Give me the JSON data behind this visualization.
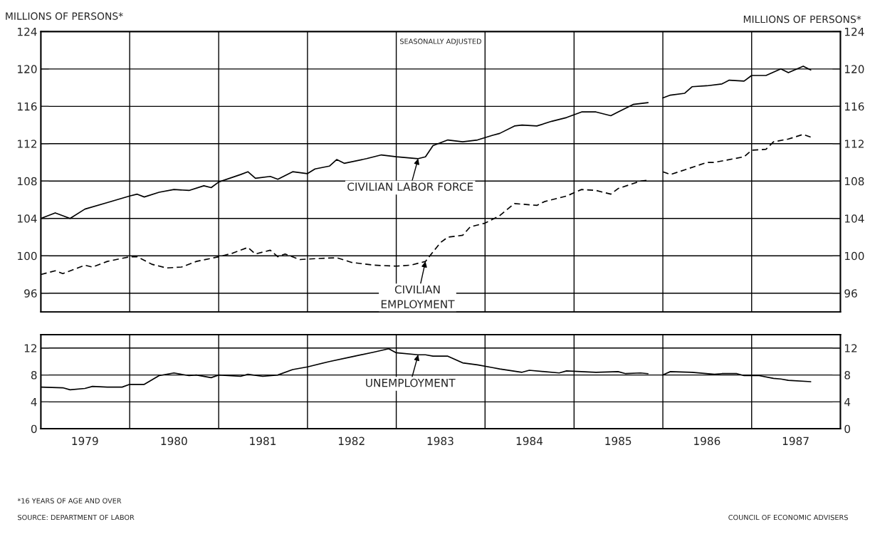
{
  "chart_data": [
    {
      "type": "line",
      "subtitle": "SEASONALLY ADJUSTED",
      "ylabel": "MILLIONS OF PERSONS*",
      "y2label": "MILLIONS OF PERSONS*",
      "xlim": [
        "1979-01",
        "1988-01"
      ],
      "xticks": [
        {
          "value": "1980-01",
          "label": null
        },
        {
          "value": "1981-01",
          "label": null
        },
        {
          "value": "1982-01",
          "label": null
        },
        {
          "value": "1983-01",
          "label": null
        },
        {
          "value": "1984-01",
          "label": null
        },
        {
          "value": "1985-01",
          "label": null
        },
        {
          "value": "1986-01",
          "label": null
        },
        {
          "value": "1987-01",
          "label": null
        }
      ],
      "ylim": [
        94,
        124
      ],
      "yticks": [
        96,
        100,
        104,
        108,
        112,
        116,
        120,
        124
      ],
      "y2lim": [
        94,
        124
      ],
      "y2ticks": [
        96,
        100,
        104,
        108,
        112,
        116,
        120,
        124
      ],
      "tick_labels": "y",
      "grid": true,
      "legend": false,
      "series": [
        {
          "color": "#000000",
          "line_style": "solid",
          "x": [
            "1979-01",
            "1979-03",
            "1979-05",
            "1979-07",
            "1979-10",
            "1980-01",
            "1980-02",
            "1980-03",
            "1980-05",
            "1980-07",
            "1980-09",
            "1980-11",
            "1980-12",
            "1981-01",
            "1981-04",
            "1981-05",
            "1981-06",
            "1981-08",
            "1981-09",
            "1981-11",
            "1982-01",
            "1982-02",
            "1982-04",
            "1982-05",
            "1982-06",
            "1982-09",
            "1982-11",
            "1983-01",
            "1983-04",
            "1983-05",
            "1983-06",
            "1983-08",
            "1983-10",
            "1983-12",
            "1984-02",
            "1984-03",
            "1984-05",
            "1984-06",
            "1984-08",
            "1984-10",
            "1984-12",
            "1985-02",
            "1985-04",
            "1985-06",
            "1985-07",
            "1985-09",
            "1985-11",
            "1985-12",
            "1986-01",
            "1986-02",
            "1986-04",
            "1986-05",
            "1986-07",
            "1986-09",
            "1986-10",
            "1986-12",
            "1987-01",
            "1987-03",
            "1987-05",
            "1987-06",
            "1987-08",
            "1987-09"
          ],
          "values": [
            104.0,
            104.6,
            104.0,
            105.0,
            105.7,
            106.4,
            106.6,
            106.3,
            106.8,
            107.1,
            107.0,
            107.5,
            107.3,
            107.9,
            108.7,
            109.0,
            108.3,
            108.5,
            108.2,
            109.0,
            108.8,
            109.3,
            109.6,
            110.3,
            109.9,
            110.4,
            110.8,
            110.6,
            110.4,
            110.6,
            111.8,
            112.4,
            112.2,
            112.4,
            112.9,
            113.1,
            113.9,
            114.0,
            113.9,
            114.4,
            114.8,
            115.4,
            115.4,
            115.0,
            115.4,
            116.2,
            116.4,
            null,
            116.9,
            117.2,
            117.4,
            118.1,
            118.2,
            118.4,
            118.8,
            118.7,
            119.3,
            119.3,
            120.0,
            119.6,
            120.3,
            119.9
          ]
        },
        {
          "color": "#000000",
          "line_style": "dashed",
          "x": [
            "1979-01",
            "1979-03",
            "1979-04",
            "1979-07",
            "1979-08",
            "1979-10",
            "1980-01",
            "1980-02",
            "1980-04",
            "1980-06",
            "1980-08",
            "1980-10",
            "1981-01",
            "1981-03",
            "1981-05",
            "1981-06",
            "1981-08",
            "1981-09",
            "1981-10",
            "1981-12",
            "1982-02",
            "1982-05",
            "1982-07",
            "1982-10",
            "1983-01",
            "1983-03",
            "1983-05",
            "1983-07",
            "1983-08",
            "1983-10",
            "1983-11",
            "1984-01",
            "1984-03",
            "1984-05",
            "1984-08",
            "1984-09",
            "1984-12",
            "1985-02",
            "1985-04",
            "1985-06",
            "1985-07",
            "1985-10",
            "1985-11",
            "1985-12",
            "1986-01",
            "1986-02",
            "1986-04",
            "1986-07",
            "1986-08",
            "1986-12",
            "1987-01",
            "1987-03",
            "1987-04",
            "1987-06",
            "1987-08",
            "1987-09"
          ],
          "values": [
            98.0,
            98.4,
            98.1,
            99.0,
            98.8,
            99.4,
            99.9,
            99.9,
            99.1,
            98.7,
            98.8,
            99.4,
            99.9,
            100.3,
            100.9,
            100.2,
            100.6,
            99.9,
            100.2,
            99.6,
            99.7,
            99.8,
            99.3,
            99.0,
            98.9,
            99.0,
            99.4,
            101.4,
            102.0,
            102.2,
            103.1,
            103.5,
            104.3,
            105.6,
            105.4,
            105.8,
            106.4,
            107.1,
            107.0,
            106.6,
            107.2,
            108.0,
            108.1,
            null,
            109.0,
            108.7,
            109.2,
            110.0,
            110.0,
            110.6,
            111.3,
            111.4,
            112.2,
            112.5,
            113.0,
            112.7
          ]
        }
      ],
      "annotations": [
        {
          "text": "CIVILIAN LABOR FORCE",
          "x": "1983-04",
          "y": 110.4
        },
        {
          "text": "CIVILIAN\nEMPLOYMENT",
          "x": "1983-05",
          "y": 99.4
        }
      ]
    },
    {
      "type": "line",
      "xlim": [
        "1979-01",
        "1988-01"
      ],
      "xticks": [
        {
          "value": "1979-07",
          "label": "1979"
        },
        {
          "value": "1980-01",
          "label": null
        },
        {
          "value": "1980-07",
          "label": "1980"
        },
        {
          "value": "1981-01",
          "label": null
        },
        {
          "value": "1981-07",
          "label": "1981"
        },
        {
          "value": "1982-01",
          "label": null
        },
        {
          "value": "1982-07",
          "label": "1982"
        },
        {
          "value": "1983-01",
          "label": null
        },
        {
          "value": "1983-07",
          "label": "1983"
        },
        {
          "value": "1984-01",
          "label": null
        },
        {
          "value": "1984-07",
          "label": "1984"
        },
        {
          "value": "1985-01",
          "label": null
        },
        {
          "value": "1985-07",
          "label": "1985"
        },
        {
          "value": "1986-01",
          "label": null
        },
        {
          "value": "1986-07",
          "label": "1986"
        },
        {
          "value": "1987-01",
          "label": null
        },
        {
          "value": "1987-07",
          "label": "1987"
        }
      ],
      "ylim": [
        0,
        14
      ],
      "yticks": [
        0,
        4,
        8,
        12
      ],
      "y2lim": [
        0,
        14
      ],
      "y2ticks": [
        0,
        4,
        8,
        12
      ],
      "grid": true,
      "legend": false,
      "series": [
        {
          "color": "#000000",
          "line_style": "solid",
          "x": [
            "1979-01",
            "1979-04",
            "1979-05",
            "1979-07",
            "1979-08",
            "1979-10",
            "1979-12",
            "1980-01",
            "1980-03",
            "1980-05",
            "1980-07",
            "1980-09",
            "1980-10",
            "1980-12",
            "1981-01",
            "1981-04",
            "1981-05",
            "1981-07",
            "1981-09",
            "1981-11",
            "1982-01",
            "1982-04",
            "1982-07",
            "1982-10",
            "1982-12",
            "1983-01",
            "1983-04",
            "1983-05",
            "1983-06",
            "1983-08",
            "1983-10",
            "1983-12",
            "1984-02",
            "1984-03",
            "1984-06",
            "1984-07",
            "1984-11",
            "1984-12",
            "1985-04",
            "1985-07",
            "1985-08",
            "1985-10",
            "1985-11",
            "1985-12",
            "1986-01",
            "1986-02",
            "1986-05",
            "1986-08",
            "1986-09",
            "1986-11",
            "1986-12",
            "1987-02",
            "1987-04",
            "1987-05",
            "1987-06",
            "1987-09"
          ],
          "values": [
            6.2,
            6.1,
            5.8,
            6.0,
            6.3,
            6.2,
            6.2,
            6.6,
            6.6,
            7.9,
            8.3,
            7.9,
            8.0,
            7.6,
            8.0,
            7.8,
            8.1,
            7.8,
            8.0,
            8.8,
            9.2,
            10.0,
            10.7,
            11.4,
            11.9,
            11.3,
            11.0,
            11.0,
            10.8,
            10.8,
            9.8,
            9.5,
            9.1,
            8.9,
            8.4,
            8.7,
            8.3,
            8.6,
            8.4,
            8.5,
            8.2,
            8.3,
            8.2,
            null,
            8.0,
            8.5,
            8.4,
            8.1,
            8.2,
            8.2,
            7.9,
            7.9,
            7.5,
            7.4,
            7.2,
            7.0
          ]
        }
      ],
      "annotations": [
        {
          "text": "UNEMPLOYMENT",
          "x": "1983-04",
          "y": 11.0
        },
        "*16 YEARS OF AGE AND OVER",
        "SOURCE: DEPARTMENT OF LABOR",
        "COUNCIL OF ECONOMIC ADVISERS"
      ]
    }
  ]
}
